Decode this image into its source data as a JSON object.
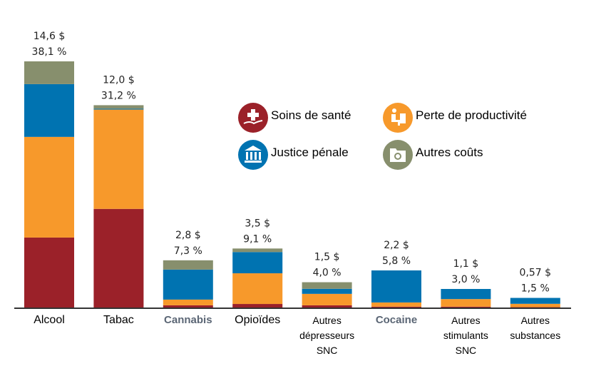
{
  "chart_data": {
    "type": "bar",
    "stacked": true,
    "title": "",
    "xlabel": "",
    "ylabel": "",
    "ylim": [
      0,
      14.6
    ],
    "grid": false,
    "legend_position": "top-right",
    "categories": [
      {
        "lines": [
          "Alcool"
        ],
        "style": "normal"
      },
      {
        "lines": [
          "Tabac"
        ],
        "style": "normal"
      },
      {
        "lines": [
          "Cannabis"
        ],
        "style": "highlight"
      },
      {
        "lines": [
          "Opioïdes"
        ],
        "style": "normal"
      },
      {
        "lines": [
          "Autres",
          "dépresseurs",
          "SNC"
        ],
        "style": "small"
      },
      {
        "lines": [
          "Cocaine"
        ],
        "style": "highlight"
      },
      {
        "lines": [
          "Autres",
          "stimulants",
          "SNC"
        ],
        "style": "small"
      },
      {
        "lines": [
          "Autres",
          "substances"
        ],
        "style": "small"
      }
    ],
    "totals": [
      "14,6 $",
      "12,0 $",
      "2,8 $",
      "3,5 $",
      "1,5 $",
      "2,2 $",
      "1,1 $",
      "0,57 $"
    ],
    "percents": [
      "38,1 %",
      "31,2 %",
      "7,3 %",
      "9,1 %",
      "4,0 %",
      "5,8 %",
      "3,0 %",
      "1,5 %"
    ],
    "series": [
      {
        "name": "Soins de santé",
        "color": "#9b2129",
        "icon": "health-care-icon",
        "values": [
          4.15,
          5.85,
          0.13,
          0.21,
          0.13,
          0.05,
          0.05,
          0.02
        ]
      },
      {
        "name": "Perte de productivité",
        "color": "#f7992b",
        "icon": "productivity-icon",
        "values": [
          5.97,
          5.89,
          0.34,
          1.82,
          0.68,
          0.25,
          0.45,
          0.2
        ]
      },
      {
        "name": "Justice pénale",
        "color": "#0073b1",
        "icon": "courthouse-icon",
        "values": [
          3.13,
          0.05,
          1.78,
          1.26,
          0.3,
          1.9,
          0.6,
          0.35
        ]
      },
      {
        "name": "Autres coûts",
        "color": "#878f6d",
        "icon": "folder-gear-icon",
        "values": [
          1.35,
          0.21,
          0.55,
          0.21,
          0.39,
          0,
          0,
          0
        ]
      }
    ]
  }
}
